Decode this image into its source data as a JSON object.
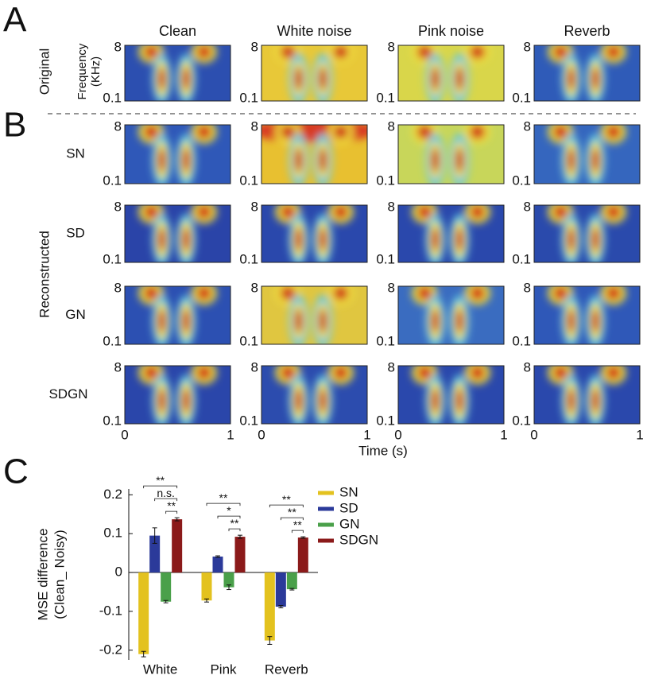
{
  "panel_labels": [
    "A",
    "B",
    "C"
  ],
  "columns": [
    "Clean",
    "White noise",
    "Pink noise",
    "Reverb"
  ],
  "original_label": "Original",
  "reconstructed_label": "Reconstructed",
  "frequency_label": [
    "Frequency",
    "(KHz)"
  ],
  "rows": [
    "SN",
    "SD",
    "GN",
    "SDGN"
  ],
  "freq_ticks": [
    "8",
    "0.1"
  ],
  "time_ticks": [
    "0",
    "1"
  ],
  "time_label": "Time (s)",
  "chart_data": {
    "type": "bar",
    "ylabel": [
      "MSE difference",
      "(Clean_ Noisy)"
    ],
    "categories": [
      "White",
      "Pink",
      "Reverb"
    ],
    "series": [
      {
        "name": "SN",
        "color": "#e3c21f",
        "values": [
          -0.21,
          -0.072,
          -0.175
        ],
        "errors": [
          0.007,
          0.004,
          0.01
        ]
      },
      {
        "name": "SD",
        "color": "#2b3a9a",
        "values": [
          0.095,
          0.041,
          -0.088
        ],
        "errors": [
          0.02,
          0.002,
          0.003
        ]
      },
      {
        "name": "GN",
        "color": "#4aa04a",
        "values": [
          -0.075,
          -0.038,
          -0.043
        ],
        "errors": [
          0.003,
          0.006,
          0.002
        ]
      },
      {
        "name": "SDGN",
        "color": "#8b1a1a",
        "values": [
          0.137,
          0.092,
          0.09
        ],
        "errors": [
          0.004,
          0.004,
          0.002
        ]
      }
    ],
    "significance": [
      [
        "**",
        "n.s.",
        "**"
      ],
      [
        "**",
        "*",
        "**"
      ],
      [
        "**",
        "**",
        "**"
      ]
    ],
    "ylim": [
      -0.225,
      0.215
    ],
    "yticks": [
      -0.2,
      -0.1,
      0,
      0.1,
      0.2
    ],
    "legend": "right"
  }
}
